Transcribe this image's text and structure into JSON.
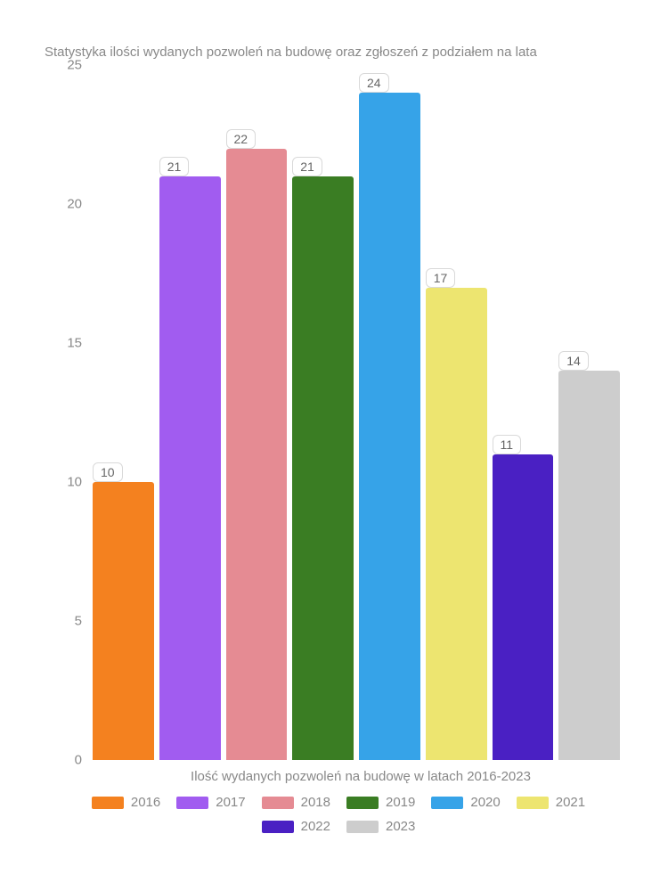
{
  "chart": {
    "type": "bar",
    "title": "Statystyka ilości wydanych pozwoleń na budowę oraz zgłoszeń z podziałem na lata",
    "x_label": "Ilość wydanych pozwoleń na budowę w latach 2016-2023",
    "y": {
      "min": 0,
      "max": 25,
      "step": 5,
      "ticks": [
        0,
        5,
        10,
        15,
        20,
        25
      ]
    },
    "series": [
      {
        "year": "2016",
        "value": 10,
        "color": "#f4811f"
      },
      {
        "year": "2017",
        "value": 21,
        "color": "#a15cf0"
      },
      {
        "year": "2018",
        "value": 22,
        "color": "#e58b93"
      },
      {
        "year": "2019",
        "value": 21,
        "color": "#3a7d23"
      },
      {
        "year": "2020",
        "value": 24,
        "color": "#36a3e8"
      },
      {
        "year": "2021",
        "value": 17,
        "color": "#ede570"
      },
      {
        "year": "2022",
        "value": 11,
        "color": "#4a20c3"
      },
      {
        "year": "2023",
        "value": 14,
        "color": "#cdcdcd"
      }
    ],
    "background_color": "#ffffff",
    "text_color": "#888888",
    "label_box_border": "#d9d9d9",
    "title_fontsize": 15,
    "axis_fontsize": 15,
    "legend_fontsize": 15,
    "bar_label_fontsize": 14
  }
}
